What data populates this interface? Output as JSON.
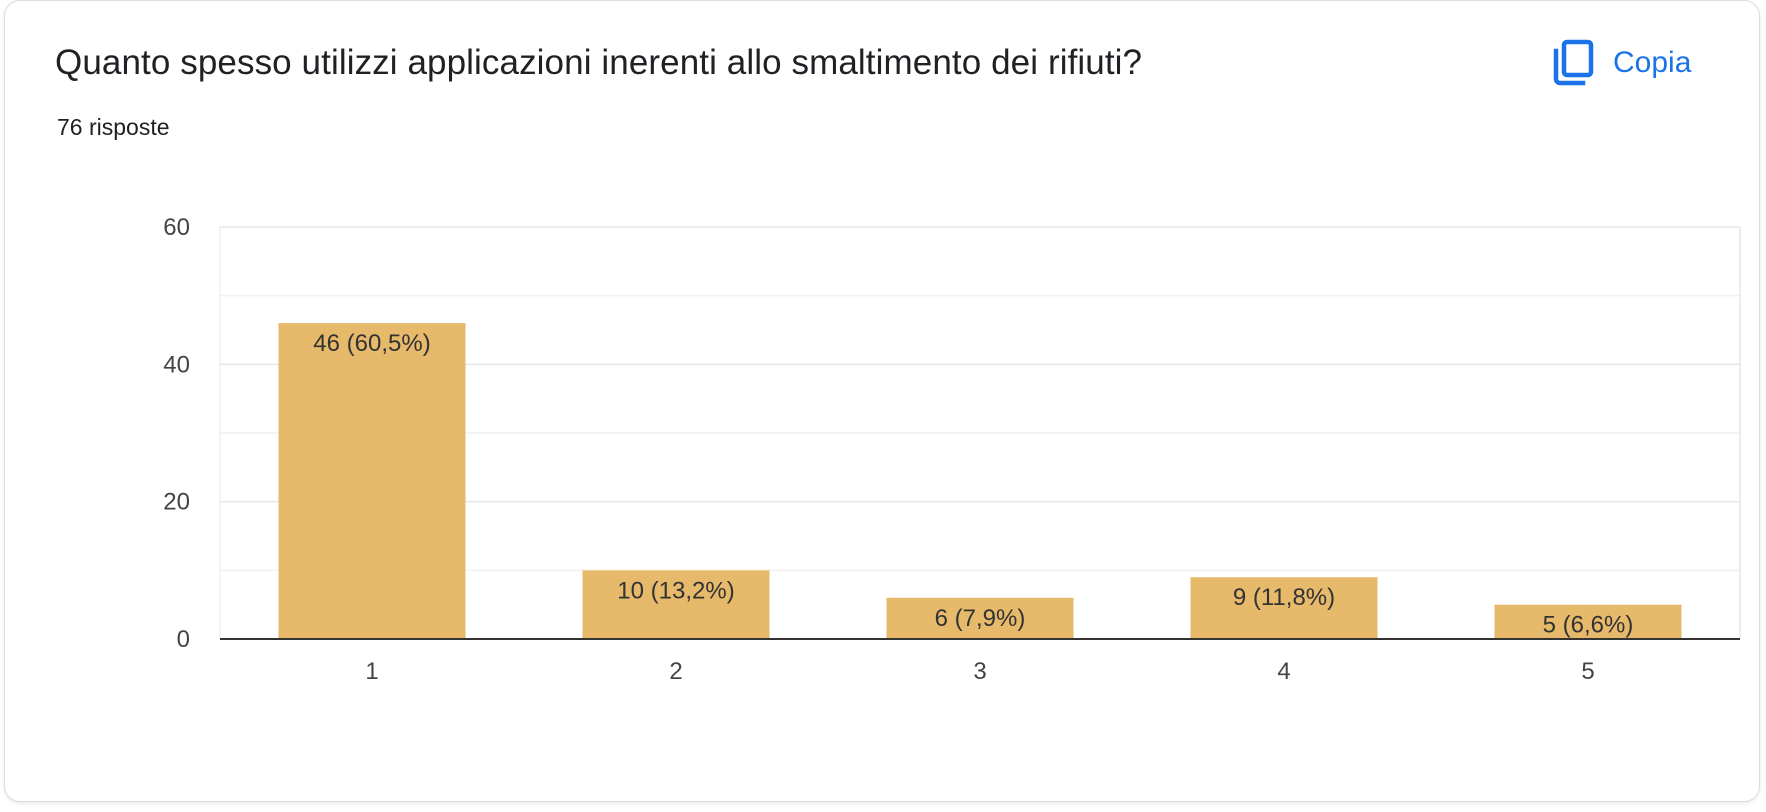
{
  "question": {
    "title": "Quanto spesso utilizzi applicazioni inerenti allo smaltimento dei rifiuti?",
    "response_count": "76 risposte"
  },
  "actions": {
    "copy_label": "Copia",
    "copy_icon": "copy-icon"
  },
  "colors": {
    "accent": "#1a73e8",
    "bar": "#e6b96b",
    "text": "#202124"
  },
  "chart_data": {
    "type": "bar",
    "categories": [
      "1",
      "2",
      "3",
      "4",
      "5"
    ],
    "values": [
      46,
      10,
      6,
      9,
      5
    ],
    "data_labels": [
      "46 (60,5%)",
      "10 (13,2%)",
      "6 (7,9%)",
      "9 (11,8%)",
      "5 (6,6%)"
    ],
    "y_ticks": [
      "0",
      "20",
      "40",
      "60"
    ],
    "ylim": [
      0,
      60
    ],
    "grid": true,
    "legend": "none",
    "title": "",
    "xlabel": "",
    "ylabel": ""
  }
}
